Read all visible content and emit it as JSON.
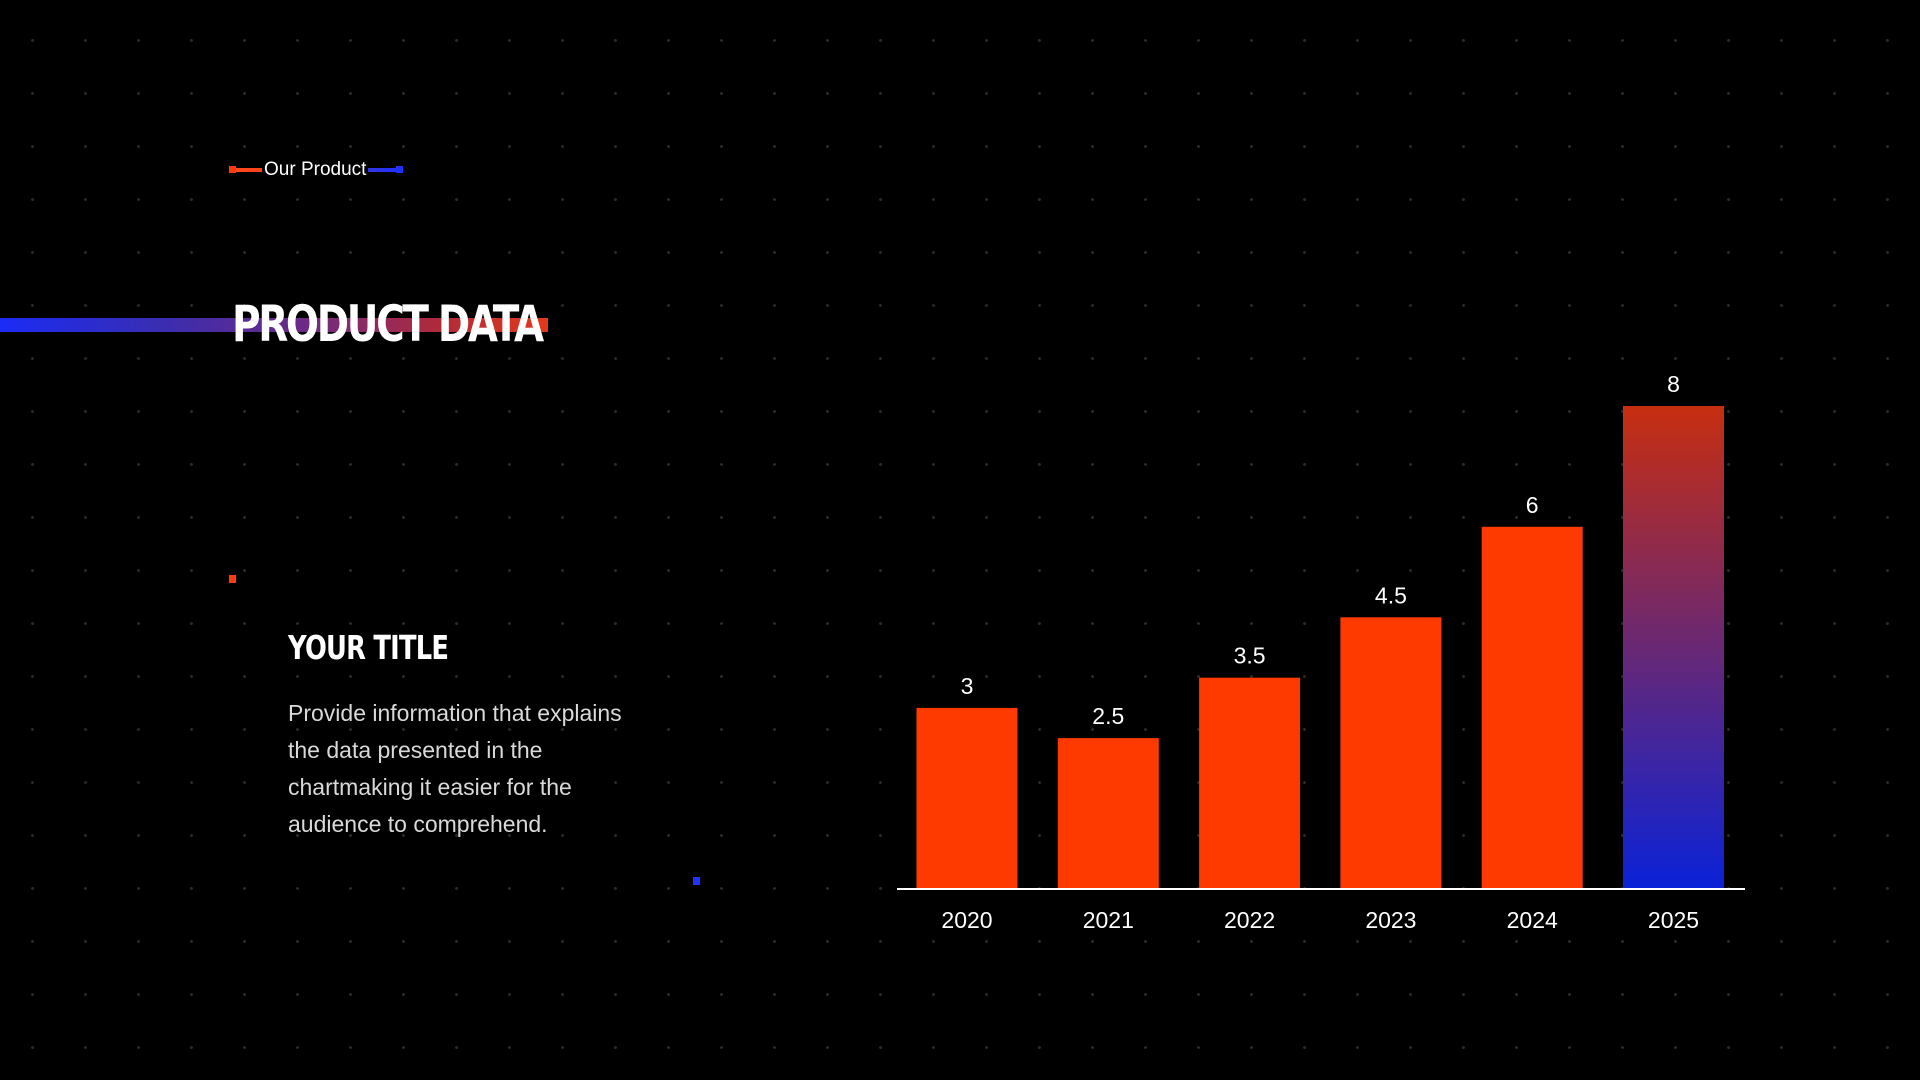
{
  "tag": {
    "label": "Our Product"
  },
  "heading": {
    "title": "PRODUCT DATA"
  },
  "info": {
    "title": "YOUR TITLE",
    "text": "Provide information that explains the data presented in the chartmaking it easier for the audience to comprehend."
  },
  "colors": {
    "accent_orange": "#ff3a00",
    "accent_blue": "#0a22d8",
    "highlight_gradient": [
      "#c72e10",
      "#0a22d8"
    ]
  },
  "chart_data": {
    "type": "bar",
    "categories": [
      "2020",
      "2021",
      "2022",
      "2023",
      "2024",
      "2025"
    ],
    "values": [
      3,
      2.5,
      3.5,
      4.5,
      6,
      8
    ],
    "data_labels": [
      "3",
      "2.5",
      "3.5",
      "4.5",
      "6",
      "8"
    ],
    "highlighted_category": "2025",
    "ylim": [
      0,
      8
    ],
    "grid": false,
    "legend": "none",
    "title": "",
    "xlabel": "",
    "ylabel": ""
  }
}
